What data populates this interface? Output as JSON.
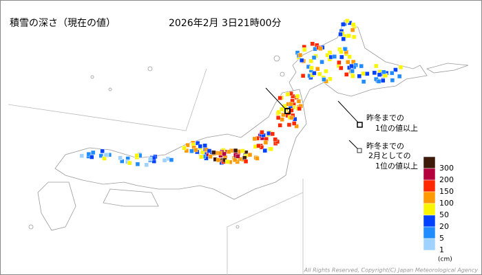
{
  "header": {
    "title": "積雪の深さ（現在の値）",
    "datetime": "2026年2月 3日21時00分"
  },
  "legend": {
    "levels": [
      {
        "value": 300,
        "color": "#3d1a0a"
      },
      {
        "value": 200,
        "color": "#b4003c"
      },
      {
        "value": 150,
        "color": "#ff2800"
      },
      {
        "value": 100,
        "color": "#ff9900"
      },
      {
        "value": 50,
        "color": "#faf500"
      },
      {
        "value": 20,
        "color": "#0041ff"
      },
      {
        "value": 5,
        "color": "#218cff"
      },
      {
        "value": 1,
        "color": "#a0d2ff"
      }
    ],
    "unit": "(cm)"
  },
  "annotations": [
    {
      "lines": [
        "昨冬までの",
        "1位の値以上"
      ]
    },
    {
      "lines": [
        "昨冬までの",
        "2月としての",
        "1位の値以上"
      ]
    }
  ],
  "footer": "All Rights Reserved, Copyright(C) Japan Meteorological Agency"
}
